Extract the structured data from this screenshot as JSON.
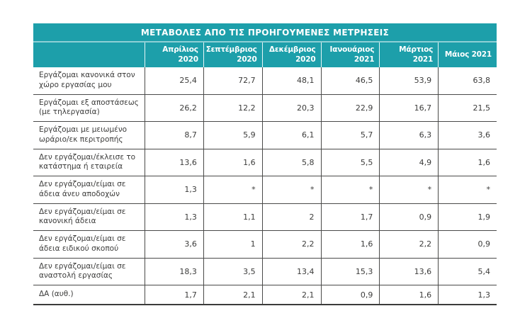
{
  "table": {
    "title": "ΜΕΤΑΒΟΛΕΣ ΑΠΟ ΤΙΣ ΠΡΟΗΓΟΥΜΕΝΕΣ ΜΕΤΡΗΣΕΙΣ",
    "columns": [
      "Απρίλιος 2020",
      "Σεπτέμβριος 2020",
      "Δεκέμβριος 2020",
      "Ιανουάριος 2021",
      "Μάρτιος 2021",
      "Μάιος 2021"
    ],
    "rows": [
      {
        "label": "Εργάζομαι κανονικά στον χώρο εργασίας μου",
        "values": [
          "25,4",
          "72,7",
          "48,1",
          "46,5",
          "53,9",
          "63,8"
        ]
      },
      {
        "label": "Εργάζομαι εξ αποστάσεως (με τηλεργασία)",
        "values": [
          "26,2",
          "12,2",
          "20,3",
          "22,9",
          "16,7",
          "21,5"
        ]
      },
      {
        "label": "Εργάζομαι με μειωμένο ωράριο/εκ περιτροπής",
        "values": [
          "8,7",
          "5,9",
          "6,1",
          "5,7",
          "6,3",
          "3,6"
        ]
      },
      {
        "label": "Δεν εργάζομαι/έκλεισε το κατάστημα ή εταιρεία",
        "values": [
          "13,6",
          "1,6",
          "5,8",
          "5,5",
          "4,9",
          "1,6"
        ]
      },
      {
        "label": "Δεν εργάζομαι/είμαι σε άδεια άνευ αποδοχών",
        "values": [
          "1,3",
          "*",
          "*",
          "*",
          "*",
          "*"
        ]
      },
      {
        "label": "Δεν εργάζομαι/είμαι σε κανονική άδεια",
        "values": [
          "1,3",
          "1,1",
          "2",
          "1,7",
          "0,9",
          "1,9"
        ]
      },
      {
        "label": "Δεν εργάζομαι/είμαι σε άδεια ειδικού σκοπού",
        "values": [
          "3,6",
          "1",
          "2,2",
          "1,6",
          "2,2",
          "0,9"
        ]
      },
      {
        "label": "Δεν εργάζομαι/είμαι σε αναστολή εργασίας",
        "values": [
          "18,3",
          "3,5",
          "13,4",
          "15,3",
          "13,6",
          "5,4"
        ]
      },
      {
        "label": "ΔΑ (αυθ.)",
        "values": [
          "1,7",
          "2,1",
          "2,1",
          "0,9",
          "1,6",
          "1,3"
        ]
      }
    ],
    "colors": {
      "header_teal": "#1D9FAA",
      "header_text": "#FFFFFF",
      "body_text": "#3C3C3B",
      "grid_line": "#4A4A49"
    }
  }
}
